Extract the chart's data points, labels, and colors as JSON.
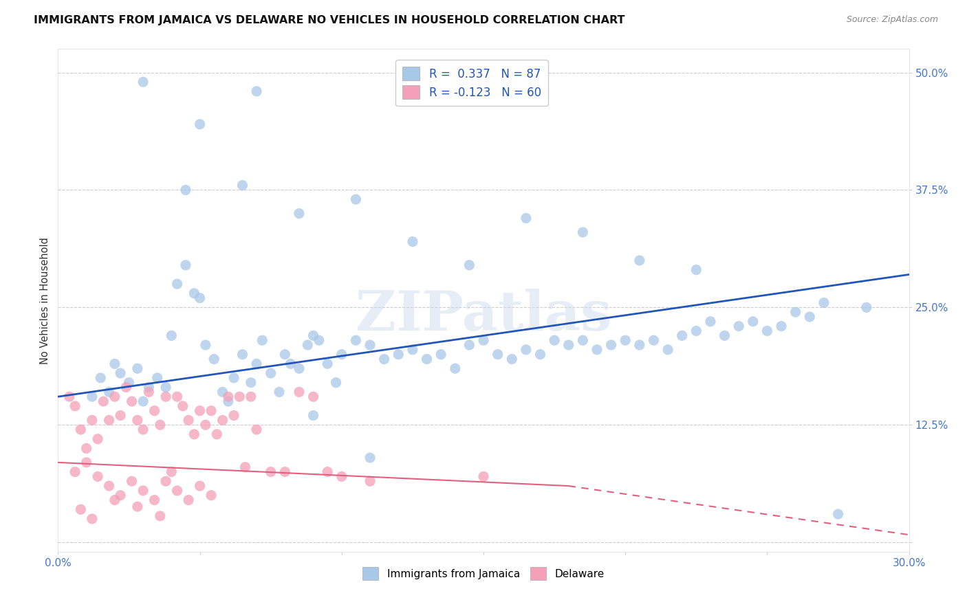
{
  "title": "IMMIGRANTS FROM JAMAICA VS DELAWARE NO VEHICLES IN HOUSEHOLD CORRELATION CHART",
  "source": "Source: ZipAtlas.com",
  "ylabel": "No Vehicles in Household",
  "xlim": [
    0.0,
    0.3
  ],
  "ylim": [
    -0.01,
    0.525
  ],
  "blue_R": 0.337,
  "blue_N": 87,
  "pink_R": -0.123,
  "pink_N": 60,
  "blue_color": "#a8c8e8",
  "pink_color": "#f4a0b8",
  "blue_line_color": "#2255bb",
  "pink_line_color": "#e06080",
  "legend_blue_label": "R =  0.337   N = 87",
  "legend_pink_label": "R = -0.123   N = 60",
  "watermark": "ZIPatlas",
  "background_color": "#ffffff",
  "grid_color": "#cccccc",
  "title_fontsize": 11.5,
  "axis_tick_color": "#4477cc",
  "blue_scatter_x": [
    0.012,
    0.015,
    0.018,
    0.02,
    0.022,
    0.025,
    0.028,
    0.03,
    0.032,
    0.035,
    0.038,
    0.04,
    0.042,
    0.045,
    0.048,
    0.05,
    0.052,
    0.055,
    0.058,
    0.06,
    0.062,
    0.065,
    0.068,
    0.07,
    0.072,
    0.075,
    0.078,
    0.08,
    0.082,
    0.085,
    0.088,
    0.09,
    0.092,
    0.095,
    0.098,
    0.1,
    0.105,
    0.11,
    0.115,
    0.12,
    0.125,
    0.13,
    0.135,
    0.14,
    0.145,
    0.15,
    0.155,
    0.16,
    0.165,
    0.17,
    0.175,
    0.18,
    0.185,
    0.19,
    0.195,
    0.2,
    0.205,
    0.21,
    0.215,
    0.22,
    0.225,
    0.23,
    0.235,
    0.24,
    0.245,
    0.25,
    0.255,
    0.26,
    0.265,
    0.27,
    0.045,
    0.065,
    0.085,
    0.105,
    0.125,
    0.145,
    0.165,
    0.185,
    0.205,
    0.225,
    0.03,
    0.05,
    0.07,
    0.09,
    0.11,
    0.285,
    0.275
  ],
  "blue_scatter_y": [
    0.155,
    0.175,
    0.16,
    0.19,
    0.18,
    0.17,
    0.185,
    0.15,
    0.165,
    0.175,
    0.165,
    0.22,
    0.275,
    0.295,
    0.265,
    0.26,
    0.21,
    0.195,
    0.16,
    0.15,
    0.175,
    0.2,
    0.17,
    0.19,
    0.215,
    0.18,
    0.16,
    0.2,
    0.19,
    0.185,
    0.21,
    0.22,
    0.215,
    0.19,
    0.17,
    0.2,
    0.215,
    0.21,
    0.195,
    0.2,
    0.205,
    0.195,
    0.2,
    0.185,
    0.21,
    0.215,
    0.2,
    0.195,
    0.205,
    0.2,
    0.215,
    0.21,
    0.215,
    0.205,
    0.21,
    0.215,
    0.21,
    0.215,
    0.205,
    0.22,
    0.225,
    0.235,
    0.22,
    0.23,
    0.235,
    0.225,
    0.23,
    0.245,
    0.24,
    0.255,
    0.375,
    0.38,
    0.35,
    0.365,
    0.32,
    0.295,
    0.345,
    0.33,
    0.3,
    0.29,
    0.49,
    0.445,
    0.48,
    0.135,
    0.09,
    0.25,
    0.03
  ],
  "pink_scatter_x": [
    0.004,
    0.006,
    0.008,
    0.01,
    0.012,
    0.014,
    0.016,
    0.018,
    0.02,
    0.022,
    0.024,
    0.026,
    0.028,
    0.03,
    0.032,
    0.034,
    0.036,
    0.038,
    0.04,
    0.042,
    0.044,
    0.046,
    0.048,
    0.05,
    0.052,
    0.054,
    0.056,
    0.058,
    0.06,
    0.062,
    0.064,
    0.066,
    0.068,
    0.07,
    0.075,
    0.08,
    0.085,
    0.09,
    0.095,
    0.1,
    0.006,
    0.01,
    0.014,
    0.018,
    0.022,
    0.026,
    0.03,
    0.034,
    0.038,
    0.042,
    0.046,
    0.05,
    0.054,
    0.008,
    0.012,
    0.02,
    0.028,
    0.036,
    0.11,
    0.15
  ],
  "pink_scatter_y": [
    0.155,
    0.145,
    0.12,
    0.1,
    0.13,
    0.11,
    0.15,
    0.13,
    0.155,
    0.135,
    0.165,
    0.15,
    0.13,
    0.12,
    0.16,
    0.14,
    0.125,
    0.155,
    0.075,
    0.155,
    0.145,
    0.13,
    0.115,
    0.14,
    0.125,
    0.14,
    0.115,
    0.13,
    0.155,
    0.135,
    0.155,
    0.08,
    0.155,
    0.12,
    0.075,
    0.075,
    0.16,
    0.155,
    0.075,
    0.07,
    0.075,
    0.085,
    0.07,
    0.06,
    0.05,
    0.065,
    0.055,
    0.045,
    0.065,
    0.055,
    0.045,
    0.06,
    0.05,
    0.035,
    0.025,
    0.045,
    0.038,
    0.028,
    0.065,
    0.07
  ]
}
